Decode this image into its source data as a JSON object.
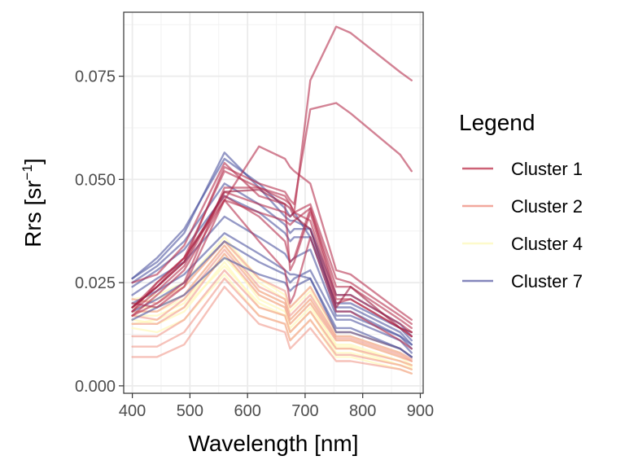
{
  "chart_data": {
    "type": "line",
    "xlabel": "Wavelength [nm]",
    "ylabel_main": "Rrs [sr",
    "ylabel_sup": "−1",
    "ylabel_close": "]",
    "xlim": [
      385,
      905
    ],
    "ylim": [
      -0.0018,
      0.0905
    ],
    "x_ticks": [
      {
        "value": 400,
        "label": "400"
      },
      {
        "value": 500,
        "label": "500"
      },
      {
        "value": 600,
        "label": "600"
      },
      {
        "value": 700,
        "label": "700"
      },
      {
        "value": 800,
        "label": "800"
      },
      {
        "value": 900,
        "label": "900"
      }
    ],
    "y_ticks": [
      {
        "value": 0.0,
        "label": "0.000"
      },
      {
        "value": 0.025,
        "label": "0.025"
      },
      {
        "value": 0.05,
        "label": "0.050"
      },
      {
        "value": 0.075,
        "label": "0.075"
      }
    ],
    "grid": true,
    "legend": {
      "title": "Legend",
      "position": "right",
      "entries": [
        {
          "label": "Cluster 1",
          "color": "#c4475f"
        },
        {
          "label": "Cluster 2",
          "color": "#f0998c"
        },
        {
          "label": "Cluster 4",
          "color": "#fdfacb"
        },
        {
          "label": "Cluster 7",
          "color": "#6e72b0"
        }
      ]
    },
    "wavelengths": [
      400,
      443,
      490,
      560,
      620,
      665,
      674,
      681,
      709,
      754,
      779,
      865,
      885
    ],
    "series": [
      {
        "cluster": "Cluster 4",
        "color": "#fffac0",
        "values": [
          0.014,
          0.013,
          0.016,
          0.027,
          0.017,
          0.015,
          0.011,
          0.012,
          0.016,
          0.007,
          0.007,
          0.004,
          0.003
        ]
      },
      {
        "cluster": "Cluster 4",
        "color": "#fffac0",
        "values": [
          0.016,
          0.015,
          0.018,
          0.03,
          0.019,
          0.017,
          0.013,
          0.014,
          0.018,
          0.009,
          0.009,
          0.005,
          0.004
        ]
      },
      {
        "cluster": "Cluster 4",
        "color": "#fffac0",
        "values": [
          0.017,
          0.017,
          0.02,
          0.032,
          0.021,
          0.018,
          0.014,
          0.015,
          0.019,
          0.01,
          0.01,
          0.006,
          0.005
        ]
      },
      {
        "cluster": "Cluster 4",
        "color": "#fffac0",
        "values": [
          0.019,
          0.019,
          0.022,
          0.034,
          0.023,
          0.02,
          0.016,
          0.017,
          0.021,
          0.011,
          0.011,
          0.007,
          0.005
        ]
      },
      {
        "cluster": "Cluster 4",
        "color": "#fffac0",
        "values": [
          0.02,
          0.021,
          0.024,
          0.035,
          0.025,
          0.021,
          0.018,
          0.019,
          0.023,
          0.012,
          0.012,
          0.008,
          0.006
        ]
      },
      {
        "cluster": "Cluster 4",
        "color": "#fffac0",
        "values": [
          0.015,
          0.016,
          0.019,
          0.029,
          0.02,
          0.017,
          0.013,
          0.014,
          0.018,
          0.008,
          0.008,
          0.005,
          0.004
        ]
      },
      {
        "cluster": "Cluster 4",
        "color": "#fffac0",
        "values": [
          0.018,
          0.018,
          0.021,
          0.031,
          0.022,
          0.019,
          0.015,
          0.016,
          0.02,
          0.0095,
          0.0095,
          0.006,
          0.0045
        ]
      },
      {
        "cluster": "Cluster 4",
        "color": "#fffac0",
        "values": [
          0.021,
          0.022,
          0.025,
          0.036,
          0.026,
          0.022,
          0.019,
          0.02,
          0.024,
          0.013,
          0.013,
          0.009,
          0.007
        ]
      },
      {
        "cluster": "Cluster 2",
        "color": "#f0998c",
        "values": [
          0.007,
          0.007,
          0.01,
          0.024,
          0.015,
          0.013,
          0.009,
          0.01,
          0.014,
          0.006,
          0.006,
          0.004,
          0.003
        ]
      },
      {
        "cluster": "Cluster 2",
        "color": "#f0998c",
        "values": [
          0.0095,
          0.0095,
          0.013,
          0.026,
          0.017,
          0.015,
          0.011,
          0.012,
          0.016,
          0.0075,
          0.0075,
          0.005,
          0.004
        ]
      },
      {
        "cluster": "Cluster 2",
        "color": "#f0998c",
        "values": [
          0.012,
          0.012,
          0.016,
          0.028,
          0.019,
          0.017,
          0.013,
          0.014,
          0.018,
          0.009,
          0.009,
          0.006,
          0.005
        ]
      },
      {
        "cluster": "Cluster 2",
        "color": "#f0998c",
        "values": [
          0.015,
          0.015,
          0.019,
          0.032,
          0.022,
          0.019,
          0.015,
          0.016,
          0.02,
          0.011,
          0.011,
          0.007,
          0.006
        ]
      },
      {
        "cluster": "Cluster 2",
        "color": "#f0998c",
        "values": [
          0.018,
          0.018,
          0.022,
          0.034,
          0.024,
          0.021,
          0.017,
          0.018,
          0.022,
          0.012,
          0.012,
          0.008,
          0.0065
        ]
      },
      {
        "cluster": "Cluster 2",
        "color": "#f0998c",
        "values": [
          0.021,
          0.02,
          0.024,
          0.035,
          0.026,
          0.023,
          0.019,
          0.02,
          0.024,
          0.013,
          0.013,
          0.009,
          0.007
        ]
      },
      {
        "cluster": "Cluster 2",
        "color": "#f0998c",
        "values": [
          0.017,
          0.016,
          0.021,
          0.033,
          0.023,
          0.02,
          0.016,
          0.017,
          0.021,
          0.0115,
          0.0115,
          0.0075,
          0.006
        ]
      },
      {
        "cluster": "Cluster 7",
        "color": "#4e55a0",
        "values": [
          0.016,
          0.019,
          0.022,
          0.031,
          0.027,
          0.025,
          0.023,
          0.024,
          0.026,
          0.014,
          0.014,
          0.009,
          0.007
        ]
      },
      {
        "cluster": "Cluster 7",
        "color": "#4e55a0",
        "values": [
          0.018,
          0.021,
          0.025,
          0.035,
          0.03,
          0.027,
          0.025,
          0.026,
          0.028,
          0.016,
          0.016,
          0.011,
          0.008
        ]
      },
      {
        "cluster": "Cluster 7",
        "color": "#4e55a0",
        "values": [
          0.02,
          0.023,
          0.027,
          0.037,
          0.032,
          0.028,
          0.027,
          0.027,
          0.026,
          0.013,
          0.013,
          0.009,
          0.007
        ]
      },
      {
        "cluster": "Cluster 7",
        "color": "#4e55a0",
        "values": [
          0.022,
          0.026,
          0.03,
          0.041,
          0.036,
          0.032,
          0.03,
          0.031,
          0.033,
          0.017,
          0.017,
          0.012,
          0.01
        ]
      },
      {
        "cluster": "Cluster 7",
        "color": "#4e55a0",
        "values": [
          0.024,
          0.028,
          0.033,
          0.046,
          0.042,
          0.037,
          0.035,
          0.036,
          0.036,
          0.02,
          0.02,
          0.014,
          0.011
        ]
      },
      {
        "cluster": "Cluster 7",
        "color": "#4e55a0",
        "values": [
          0.025,
          0.029,
          0.035,
          0.049,
          0.044,
          0.039,
          0.037,
          0.038,
          0.038,
          0.022,
          0.022,
          0.015,
          0.012
        ]
      },
      {
        "cluster": "Cluster 7",
        "color": "#4e55a0",
        "values": [
          0.026,
          0.03,
          0.037,
          0.0565,
          0.048,
          0.041,
          0.04,
          0.04,
          0.038,
          0.019,
          0.019,
          0.013,
          0.01
        ]
      },
      {
        "cluster": "Cluster 7",
        "color": "#4e55a0",
        "values": [
          0.026,
          0.031,
          0.038,
          0.055,
          0.049,
          0.043,
          0.041,
          0.042,
          0.036,
          0.018,
          0.018,
          0.012,
          0.009
        ]
      },
      {
        "cluster": "Cluster 1",
        "color": "#b5304f",
        "values": [
          0.018,
          0.025,
          0.031,
          0.045,
          0.058,
          0.055,
          0.053,
          0.052,
          0.049,
          0.028,
          0.027,
          0.018,
          0.016
        ]
      },
      {
        "cluster": "Cluster 1",
        "color": "#b5304f",
        "values": [
          0.019,
          0.024,
          0.03,
          0.053,
          0.049,
          0.047,
          0.045,
          0.044,
          0.067,
          0.0685,
          0.066,
          0.056,
          0.052
        ]
      },
      {
        "cluster": "Cluster 1",
        "color": "#b5304f",
        "values": [
          0.019,
          0.025,
          0.031,
          0.052,
          0.048,
          0.046,
          0.044,
          0.042,
          0.074,
          0.087,
          0.0855,
          0.076,
          0.074
        ]
      },
      {
        "cluster": "Cluster 1",
        "color": "#b5304f",
        "values": [
          0.018,
          0.023,
          0.029,
          0.047,
          0.044,
          0.042,
          0.041,
          0.042,
          0.044,
          0.026,
          0.025,
          0.017,
          0.015
        ]
      },
      {
        "cluster": "Cluster 1",
        "color": "#b5304f",
        "values": [
          0.017,
          0.022,
          0.028,
          0.045,
          0.042,
          0.04,
          0.039,
          0.04,
          0.043,
          0.024,
          0.024,
          0.016,
          0.014
        ]
      },
      {
        "cluster": "Cluster 1",
        "color": "#b5304f",
        "values": [
          0.019,
          0.024,
          0.031,
          0.046,
          0.041,
          0.035,
          0.03,
          0.031,
          0.043,
          0.022,
          0.022,
          0.015,
          0.013
        ]
      },
      {
        "cluster": "Cluster 1",
        "color": "#b5304f",
        "values": [
          0.025,
          0.027,
          0.034,
          0.054,
          0.046,
          0.044,
          0.028,
          0.03,
          0.042,
          0.021,
          0.021,
          0.014,
          0.012
        ]
      },
      {
        "cluster": "Cluster 1",
        "color": "#b5304f",
        "values": [
          0.02,
          0.019,
          0.024,
          0.045,
          0.035,
          0.028,
          0.02,
          0.022,
          0.036,
          0.018,
          0.018,
          0.011,
          0.009
        ]
      },
      {
        "cluster": "Cluster 1",
        "color": "#b5304f",
        "values": [
          0.017,
          0.02,
          0.025,
          0.048,
          0.048,
          0.045,
          0.044,
          0.042,
          0.04,
          0.02,
          0.021,
          0.014,
          0.012
        ]
      },
      {
        "cluster": "Cluster 1",
        "color": "#9d1c40",
        "values": [
          0.019,
          0.024,
          0.03,
          0.047,
          0.0475,
          0.044,
          0.043,
          0.041,
          0.038,
          0.019,
          0.024,
          0.014,
          0.013
        ]
      }
    ]
  }
}
